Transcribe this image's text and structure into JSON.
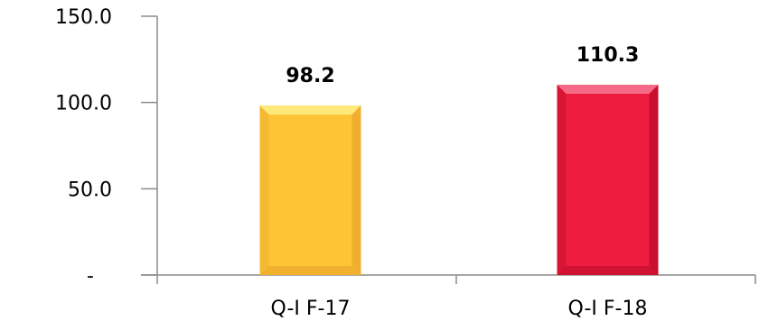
{
  "chart_data": {
    "type": "bar",
    "categories": [
      "Q-I  F-17",
      "Q-I  F-18"
    ],
    "values": [
      98.2,
      110.3
    ],
    "value_labels": [
      "98.2",
      "110.3"
    ],
    "ylim": [
      0,
      150
    ],
    "yticks": [
      0,
      50,
      100,
      150
    ],
    "ytick_labels": [
      "-",
      "50.0",
      "100.0",
      "150.0"
    ],
    "grid": false,
    "legend": "none",
    "colors": [
      "#FDC436",
      "#EE1C3E"
    ],
    "shade_colors": [
      "#EFAE2E",
      "#C8102E"
    ],
    "top_colors": [
      "#FFE97A",
      "#F56A86"
    ]
  }
}
